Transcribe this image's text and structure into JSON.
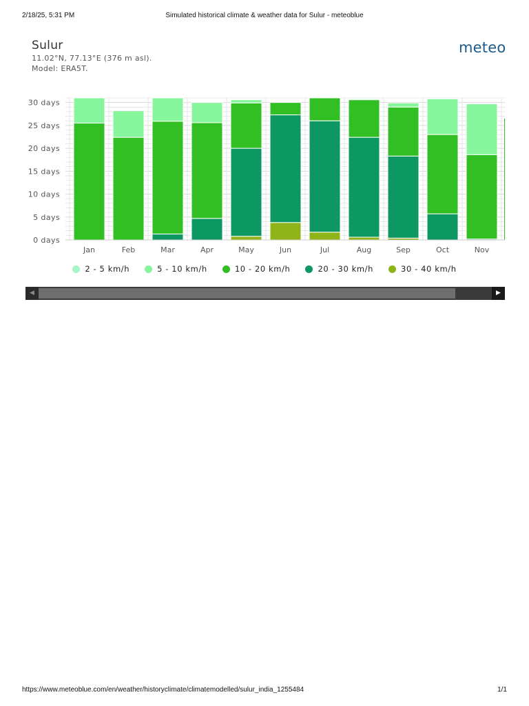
{
  "print": {
    "date": "2/18/25, 5:31 PM",
    "title": "Simulated historical climate & weather data for Sulur - meteoblue",
    "url": "https://www.meteoblue.com/en/weather/historyclimate/climatemodelled/sulur_india_1255484",
    "page": "1/1"
  },
  "location": {
    "name": "Sulur",
    "coords": "11.02°N, 77.13°E (376 m asl).",
    "model": "Model: ERA5T."
  },
  "logo": {
    "text": "meteo"
  },
  "colors": {
    "s2_5": "#a8f5c8",
    "s5_10": "#87f59c",
    "s10_20": "#31bf23",
    "s20_30": "#0d9762",
    "s30_40": "#8fb41a",
    "grid": "#d8d8d8",
    "axis_text": "#555555"
  },
  "chart_data": {
    "type": "bar",
    "stacked": true,
    "title": "",
    "xlabel": "",
    "ylabel": "",
    "ylim": [
      0,
      31
    ],
    "yticks": [
      0,
      5,
      10,
      15,
      20,
      25,
      30
    ],
    "ytick_labels": [
      "0 days",
      "5 days",
      "10 days",
      "15 days",
      "20 days",
      "25 days",
      "30 days"
    ],
    "categories": [
      "Jan",
      "Feb",
      "Mar",
      "Apr",
      "May",
      "Jun",
      "Jul",
      "Aug",
      "Sep",
      "Oct",
      "Nov"
    ],
    "series": [
      {
        "name": "30 - 40 km/h",
        "key": "s30_40",
        "values": [
          0,
          0,
          0,
          0,
          0.8,
          3.8,
          1.7,
          0.6,
          0.4,
          0,
          0
        ]
      },
      {
        "name": "20 - 30 km/h",
        "key": "s20_30",
        "values": [
          0,
          0,
          1.3,
          4.7,
          19.2,
          23.5,
          24.3,
          21.8,
          17.9,
          5.7,
          0.2
        ]
      },
      {
        "name": "10 - 20 km/h",
        "key": "s10_20",
        "values": [
          25.5,
          22.4,
          24.6,
          20.9,
          9.9,
          2.7,
          5.0,
          8.2,
          10.7,
          17.3,
          18.4
        ]
      },
      {
        "name": "5 - 10 km/h",
        "key": "s5_10",
        "values": [
          5.5,
          5.8,
          5.1,
          4.4,
          0.7,
          0,
          0,
          0.2,
          0.9,
          7.8,
          11.1
        ]
      },
      {
        "name": "2 - 5 km/h",
        "key": "s2_5",
        "values": [
          0,
          0,
          0,
          0,
          0,
          0,
          0,
          0,
          0,
          0,
          0
        ]
      }
    ],
    "legend_order": [
      "2 - 5 km/h",
      "5 - 10 km/h",
      "10 - 20 km/h",
      "20 - 30 km/h",
      "30 - 40 km/h"
    ],
    "legend_keys": [
      "s2_5",
      "s5_10",
      "s10_20",
      "s20_30",
      "s30_40"
    ],
    "legend_position": "bottom-center"
  },
  "scrollbar": {
    "left_arrow": "◀",
    "right_arrow": "▶"
  }
}
